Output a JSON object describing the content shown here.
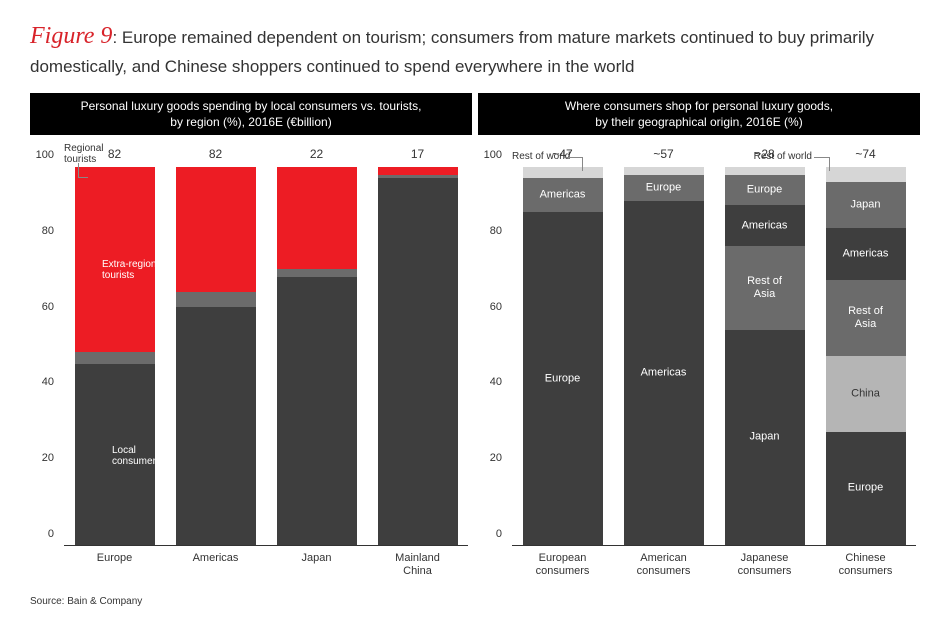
{
  "figure": {
    "label": "Figure 9",
    "caption_before": ": ",
    "caption": "Europe remained dependent on tourism; consumers from mature markets continued to buy primarily domestically, and Chinese shoppers continued to spend everywhere in the world"
  },
  "source": "Source: Bain & Company",
  "colors": {
    "black": "#000000",
    "dark_grey": "#3e3e3e",
    "mid_grey": "#6b6b6b",
    "light_grey": "#a6a6a6",
    "pale_grey": "#d6d6d6",
    "red": "#ed1c24",
    "background": "#ffffff"
  },
  "chart_left": {
    "title": "Personal luxury goods spending by local consumers vs. tourists,\nby region (%), 2016E (€billion)",
    "ylim": [
      0,
      100
    ],
    "ytick_step": 20,
    "annotations": {
      "regional_tourists": "Regional\ntourists",
      "extra_regional_tourists": "Extra-regional\ntourists",
      "local_consumers": "Local\nconsumers"
    },
    "bars": [
      {
        "label": "Europe",
        "top_value": "82",
        "segments": [
          {
            "key": "local",
            "value": 48,
            "color": "#3e3e3e"
          },
          {
            "key": "regional",
            "value": 3,
            "color": "#6b6b6b"
          },
          {
            "key": "extra_regional",
            "value": 49,
            "color": "#ed1c24"
          }
        ]
      },
      {
        "label": "Americas",
        "top_value": "82",
        "segments": [
          {
            "key": "local",
            "value": 63,
            "color": "#3e3e3e"
          },
          {
            "key": "regional",
            "value": 4,
            "color": "#6b6b6b"
          },
          {
            "key": "extra_regional",
            "value": 33,
            "color": "#ed1c24"
          }
        ]
      },
      {
        "label": "Japan",
        "top_value": "22",
        "segments": [
          {
            "key": "local",
            "value": 71,
            "color": "#3e3e3e"
          },
          {
            "key": "regional",
            "value": 2,
            "color": "#6b6b6b"
          },
          {
            "key": "extra_regional",
            "value": 27,
            "color": "#ed1c24"
          }
        ]
      },
      {
        "label": "Mainland\nChina",
        "top_value": "17",
        "segments": [
          {
            "key": "local",
            "value": 97,
            "color": "#3e3e3e"
          },
          {
            "key": "regional",
            "value": 1,
            "color": "#6b6b6b"
          },
          {
            "key": "extra_regional",
            "value": 2,
            "color": "#ed1c24"
          }
        ]
      }
    ]
  },
  "chart_right": {
    "title": "Where consumers shop for personal luxury goods,\nby their geographical origin, 2016E (%)",
    "ylim": [
      0,
      100
    ],
    "ytick_step": 20,
    "rest_of_world_label": "Rest of world",
    "bars": [
      {
        "label": "European\nconsumers",
        "top_value": "~47",
        "segments": [
          {
            "name": "Europe",
            "value": 88,
            "color": "#3e3e3e"
          },
          {
            "name": "Americas",
            "value": 9,
            "color": "#6b6b6b"
          },
          {
            "name": "Rest of world",
            "value": 3,
            "color": "#d6d6d6",
            "hide_label": true
          }
        ]
      },
      {
        "label": "American\nconsumers",
        "top_value": "~57",
        "segments": [
          {
            "name": "Americas",
            "value": 91,
            "color": "#3e3e3e"
          },
          {
            "name": "Europe",
            "value": 7,
            "color": "#6b6b6b"
          },
          {
            "name": "Rest of world",
            "value": 2,
            "color": "#d6d6d6",
            "hide_label": true
          }
        ]
      },
      {
        "label": "Japanese\nconsumers",
        "top_value": "~28",
        "segments": [
          {
            "name": "Japan",
            "value": 57,
            "color": "#3e3e3e"
          },
          {
            "name": "Rest of\nAsia",
            "value": 22,
            "color": "#6b6b6b"
          },
          {
            "name": "Americas",
            "value": 11,
            "color": "#3e3e3e"
          },
          {
            "name": "Europe",
            "value": 8,
            "color": "#6b6b6b"
          },
          {
            "name": "Rest of world",
            "value": 2,
            "color": "#d6d6d6",
            "hide_label": true
          }
        ]
      },
      {
        "label": "Chinese\nconsumers",
        "top_value": "~74",
        "segments": [
          {
            "name": "Europe",
            "value": 30,
            "color": "#3e3e3e"
          },
          {
            "name": "China",
            "value": 20,
            "color": "#b5b5b5",
            "label_dark": true
          },
          {
            "name": "Rest of\nAsia",
            "value": 20,
            "color": "#6b6b6b"
          },
          {
            "name": "Americas",
            "value": 14,
            "color": "#3e3e3e"
          },
          {
            "name": "Japan",
            "value": 12,
            "color": "#6b6b6b"
          },
          {
            "name": "Rest of world",
            "value": 4,
            "color": "#d6d6d6",
            "hide_label": true
          }
        ]
      }
    ]
  }
}
